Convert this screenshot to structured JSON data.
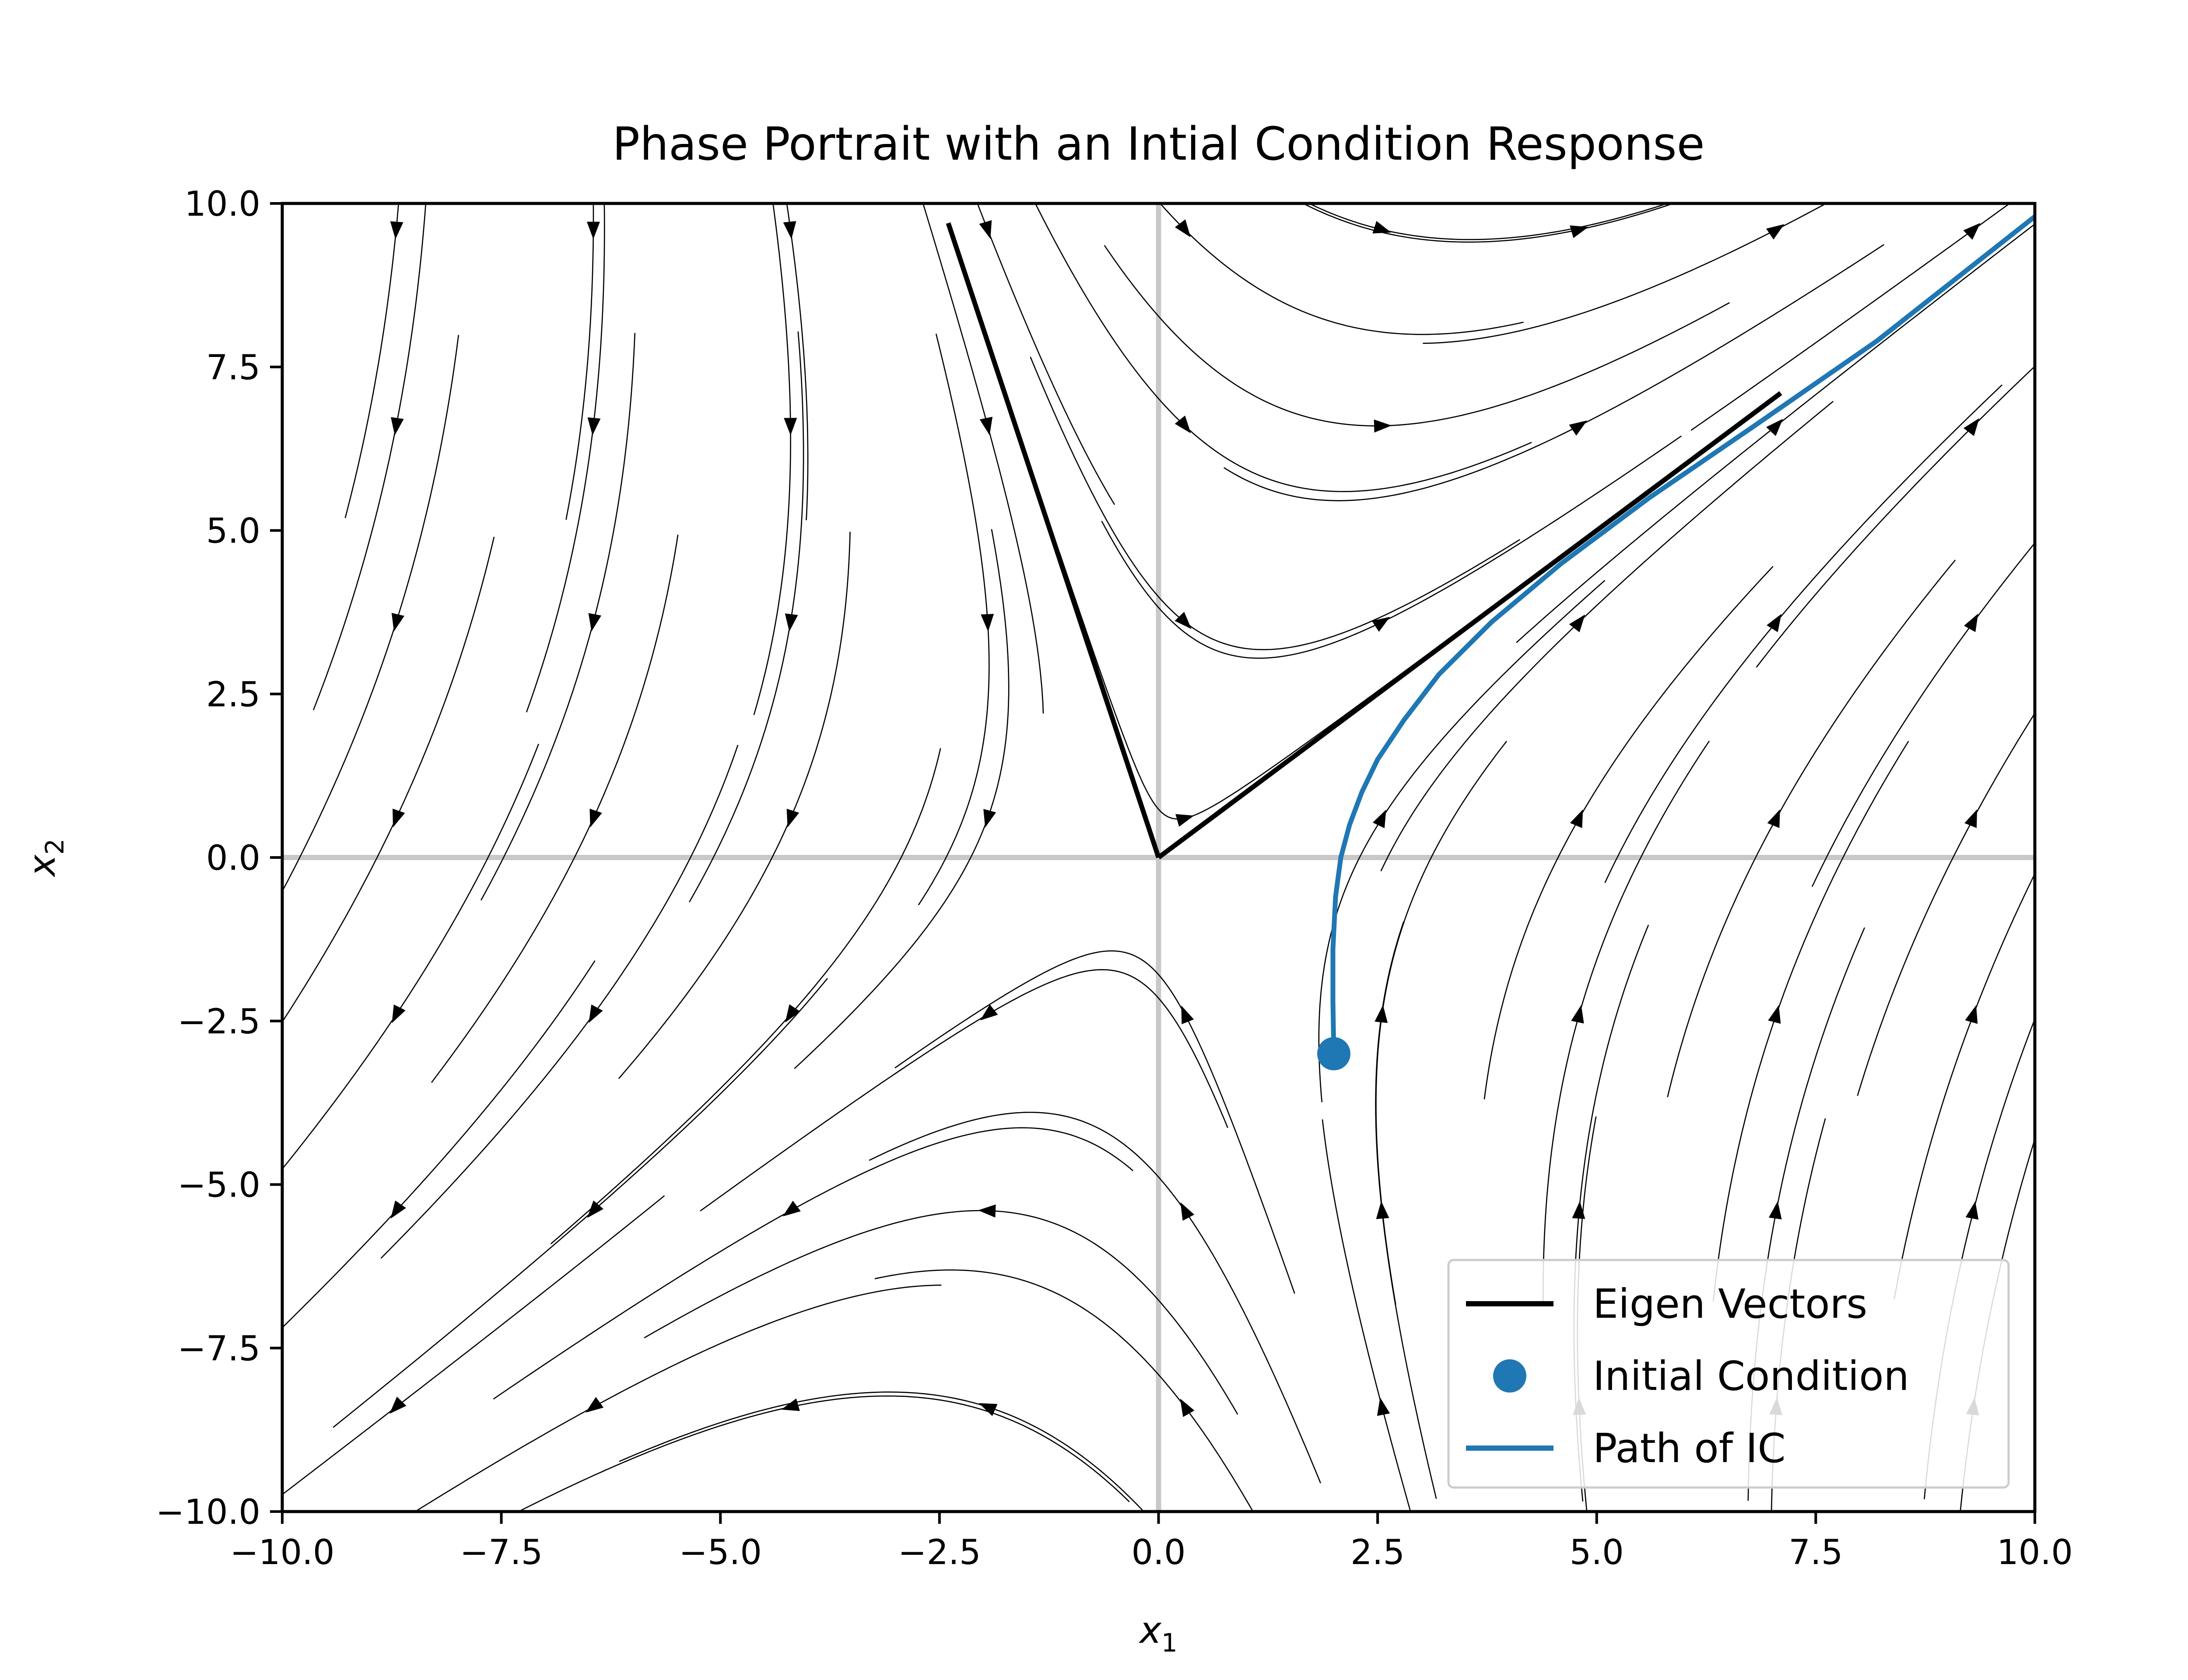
{
  "chart_data": {
    "type": "scatter",
    "title": "Phase Portrait with an Intial Condition Response",
    "xlabel_base": "x",
    "xlabel_sub": "1",
    "ylabel_base": "x",
    "ylabel_sub": "2",
    "xlim": [
      -10.0,
      10.0
    ],
    "ylim": [
      -10.0,
      10.0
    ],
    "xticks": [
      -10.0,
      -7.5,
      -5.0,
      -2.5,
      0.0,
      2.5,
      5.0,
      7.5,
      10.0
    ],
    "yticks": [
      -10.0,
      -7.5,
      -5.0,
      -2.5,
      0.0,
      2.5,
      5.0,
      7.5,
      10.0
    ],
    "xtick_labels": [
      "−10.0",
      "−7.5",
      "−5.0",
      "−2.5",
      "0.0",
      "2.5",
      "5.0",
      "7.5",
      "10.0"
    ],
    "ytick_labels": [
      "−10.0",
      "−7.5",
      "−5.0",
      "−2.5",
      "0.0",
      "2.5",
      "5.0",
      "7.5",
      "10.0"
    ],
    "system": {
      "description_source": "streamplot field consistent with eigenvector directions",
      "eigenvectors": [
        [
          0.71,
          0.71
        ],
        [
          -0.24,
          0.97
        ]
      ]
    },
    "eigen_vectors": [
      {
        "x": [
          0.0,
          7.1
        ],
        "y": [
          0.0,
          7.1
        ]
      },
      {
        "x": [
          0.0,
          -2.4
        ],
        "y": [
          0.0,
          9.7
        ]
      }
    ],
    "initial_condition": {
      "x": 2.0,
      "y": -3.0
    },
    "path_of_ic": {
      "x": [
        2.0,
        1.99,
        1.99,
        2.02,
        2.08,
        2.18,
        2.32,
        2.5,
        2.8,
        3.2,
        3.8,
        4.6,
        5.6,
        6.8,
        8.2,
        10.0
      ],
      "y": [
        -3.0,
        -2.2,
        -1.4,
        -0.6,
        0.0,
        0.5,
        1.0,
        1.5,
        2.1,
        2.8,
        3.6,
        4.5,
        5.5,
        6.6,
        7.9,
        9.8
      ]
    },
    "legend": {
      "placement": "lower-right",
      "entries": [
        "Eigen Vectors",
        "Initial Condition",
        "Path of IC"
      ]
    },
    "colors": {
      "eigen": "#000000",
      "ic": "#1f77b4",
      "stream": "#000000",
      "zero_axes": "#c8c8c8"
    },
    "zero_lines": true
  }
}
